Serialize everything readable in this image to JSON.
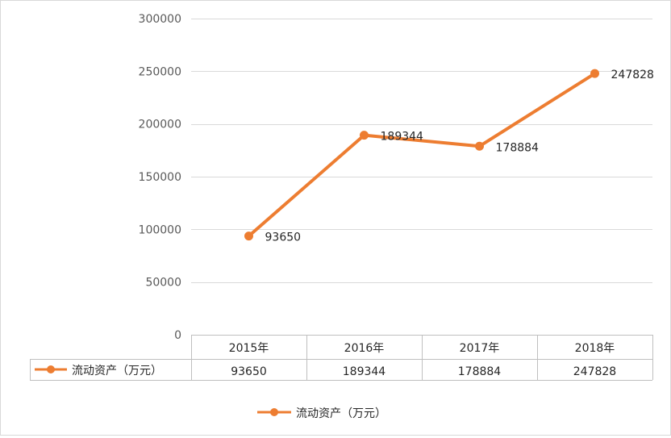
{
  "chart_data": {
    "type": "line",
    "categories": [
      "2015年",
      "2016年",
      "2017年",
      "2018年"
    ],
    "series": [
      {
        "name": "流动资产（万元）",
        "values": [
          93650,
          189344,
          178884,
          247828
        ],
        "color": "#ed7d31"
      }
    ],
    "ylim": [
      0,
      300000
    ],
    "yticks": [
      "0",
      "50000",
      "100000",
      "150000",
      "200000",
      "250000",
      "300000"
    ],
    "grid": true,
    "legend_position": "bottom",
    "data_table": true,
    "title": "",
    "xlabel": "",
    "ylabel": ""
  }
}
